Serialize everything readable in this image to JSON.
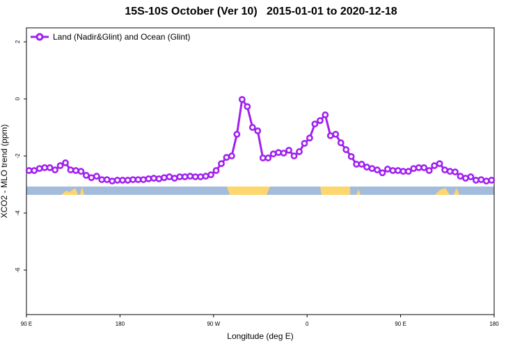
{
  "chart_data": {
    "type": "line",
    "title": "15S-10S October (Ver 10)   2015-01-01 to 2020-12-18",
    "xlabel": "Longitude (deg E)",
    "ylabel": "XCO2 - MLO trend (ppm)",
    "xlim": [
      90,
      540
    ],
    "ylim": [
      -7.56,
      2.49
    ],
    "xticks": [
      {
        "value": 90,
        "label": "90 E"
      },
      {
        "value": 180,
        "label": "180"
      },
      {
        "value": 270,
        "label": "90 W"
      },
      {
        "value": 360,
        "label": "0"
      },
      {
        "value": 450,
        "label": "90 E"
      },
      {
        "value": 540,
        "label": "180"
      }
    ],
    "yticks": [
      -6,
      -4,
      -2,
      0,
      2
    ],
    "legend": "top-left",
    "x": [
      92.5,
      97.5,
      102.5,
      107.5,
      112.5,
      117.5,
      122.5,
      127.5,
      132.5,
      137.5,
      142.5,
      147.5,
      152.5,
      157.5,
      162.5,
      167.5,
      172.5,
      177.5,
      182.5,
      187.5,
      192.5,
      197.5,
      202.5,
      207.5,
      212.5,
      217.5,
      222.5,
      227.5,
      232.5,
      237.5,
      242.5,
      247.5,
      252.5,
      257.5,
      262.5,
      267.5,
      272.5,
      277.5,
      282.5,
      287.5,
      292.5,
      297.5,
      302.5,
      307.5,
      312.5,
      317.5,
      322.5,
      327.5,
      332.5,
      337.5,
      342.5,
      347.5,
      352.5,
      357.5,
      362.5,
      367.5,
      372.5,
      377.5,
      382.5,
      387.5,
      392.5,
      397.5,
      402.5,
      407.5,
      412.5,
      417.5,
      422.5,
      427.5,
      432.5,
      437.5,
      442.5,
      447.5,
      452.5,
      457.5,
      462.5,
      467.5,
      472.5,
      477.5,
      482.5,
      487.5,
      492.5,
      497.5,
      502.5,
      507.5,
      512.5,
      517.5,
      522.5,
      527.5,
      532.5,
      537.5
    ],
    "series": [
      {
        "name": "Land (Nadir&Glint) and Ocean (Glint)",
        "color": "#a020f0",
        "values": [
          -2.51,
          -2.51,
          -2.44,
          -2.41,
          -2.41,
          -2.49,
          -2.34,
          -2.24,
          -2.49,
          -2.51,
          -2.54,
          -2.68,
          -2.76,
          -2.71,
          -2.83,
          -2.83,
          -2.88,
          -2.85,
          -2.85,
          -2.85,
          -2.83,
          -2.83,
          -2.83,
          -2.8,
          -2.78,
          -2.8,
          -2.76,
          -2.73,
          -2.78,
          -2.73,
          -2.73,
          -2.71,
          -2.73,
          -2.73,
          -2.71,
          -2.66,
          -2.51,
          -2.27,
          -2.05,
          -2.0,
          -1.24,
          -0.02,
          -0.27,
          -1.0,
          -1.12,
          -2.07,
          -2.07,
          -1.93,
          -1.88,
          -1.9,
          -1.8,
          -2.0,
          -1.85,
          -1.56,
          -1.37,
          -0.88,
          -0.76,
          -0.56,
          -1.29,
          -1.24,
          -1.54,
          -1.78,
          -2.02,
          -2.29,
          -2.29,
          -2.39,
          -2.44,
          -2.49,
          -2.59,
          -2.46,
          -2.51,
          -2.51,
          -2.54,
          -2.54,
          -2.44,
          -2.41,
          -2.41,
          -2.51,
          -2.34,
          -2.27,
          -2.49,
          -2.54,
          -2.56,
          -2.71,
          -2.78,
          -2.73,
          -2.85,
          -2.83,
          -2.88,
          -2.85
        ]
      }
    ]
  }
}
